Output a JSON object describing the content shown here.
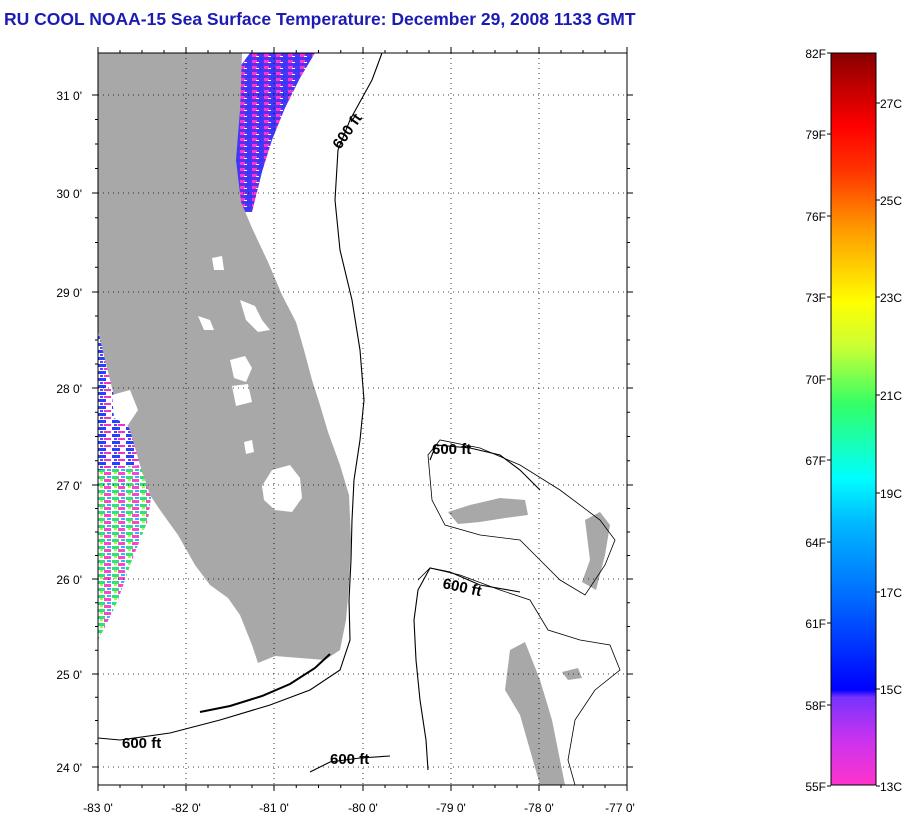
{
  "title": "RU COOL  NOAA-15  Sea Surface Temperature:  December 29, 2008 1133 GMT",
  "map": {
    "lon_ticks": [
      "-83 0'",
      "-82 0'",
      "-81 0'",
      "-80 0'",
      "-79 0'",
      "-78 0'",
      "-77 0'"
    ],
    "lat_ticks": [
      "31 0'",
      "30 0'",
      "29 0'",
      "28 0'",
      "27 0'",
      "26 0'",
      "25 0'",
      "24 0'"
    ],
    "contour_labels": [
      "600 ft",
      "600 ft",
      "600 ft",
      "600 ft",
      "600 ft"
    ],
    "land_color": "#a8a8a8",
    "ocean_color": "#ffffff"
  },
  "colorbar": {
    "f_labels": [
      "82F",
      "79F",
      "76F",
      "73F",
      "70F",
      "67F",
      "64F",
      "61F",
      "58F",
      "55F"
    ],
    "c_labels": [
      "27C",
      "25C",
      "23C",
      "21C",
      "19C",
      "17C",
      "15C",
      "13C"
    ],
    "colors": [
      "#ff33cc",
      "#9933ff",
      "#0000ff",
      "#0088ff",
      "#00ffff",
      "#33ff66",
      "#ffff00",
      "#ff8800",
      "#ff0000",
      "#990000"
    ]
  }
}
